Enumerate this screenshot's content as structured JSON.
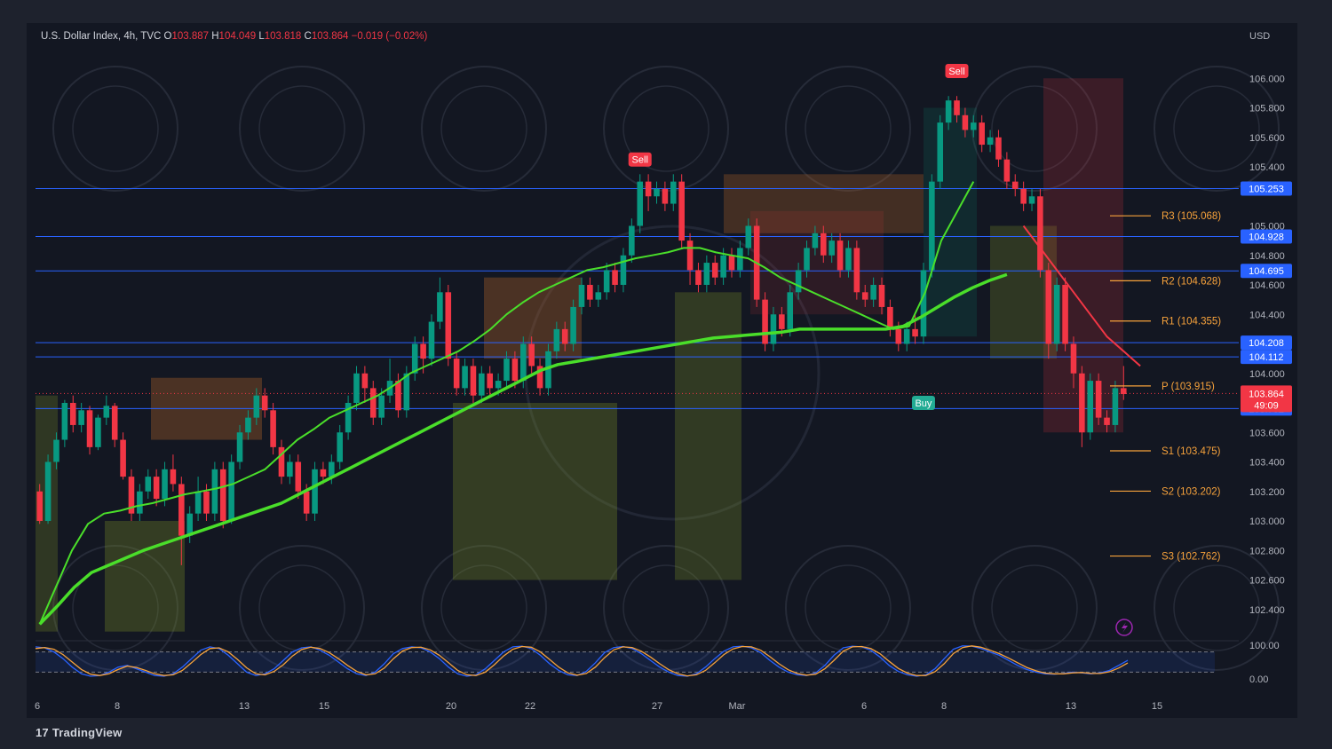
{
  "header": {
    "symbol": "U.S. Dollar Index, 4h, TVC",
    "o_label": "O",
    "o_value": "103.887",
    "h_label": "H",
    "h_value": "104.049",
    "l_label": "L",
    "l_value": "103.818",
    "c_label": "C",
    "c_value": "103.864",
    "change": "−0.019 (−0.02%)"
  },
  "brand": {
    "logo": "17",
    "name": "TradingView"
  },
  "colors": {
    "background": "#131722",
    "up": "#089981",
    "down": "#f23645",
    "ema": "#4ade2a",
    "level": "#2962ff",
    "pivot": "#f7a23b",
    "stoch_k": "#2962ff",
    "stoch_d": "#f7a23b"
  },
  "chart_data": {
    "type": "candlestick",
    "title": "U.S. Dollar Index, 4h, TVC",
    "currency_label": "USD",
    "ylim": [
      102.2,
      106.2
    ],
    "y_ticks": [
      "106.000",
      "105.800",
      "105.600",
      "105.400",
      "105.200",
      "105.000",
      "104.800",
      "104.600",
      "104.400",
      "104.200",
      "104.000",
      "103.800",
      "103.600",
      "103.400",
      "103.200",
      "103.000",
      "102.800",
      "102.600",
      "102.400"
    ],
    "x_ticks": [
      "6",
      "8",
      "13",
      "15",
      "20",
      "22",
      "27",
      "Mar",
      "6",
      "8",
      "13",
      "15"
    ],
    "candles": [
      [
        103.2,
        103.0,
        103.25,
        102.98
      ],
      [
        103.0,
        103.4,
        103.45,
        102.98
      ],
      [
        103.4,
        103.55,
        103.6,
        103.35
      ],
      [
        103.55,
        103.8,
        103.82,
        103.5
      ],
      [
        103.8,
        103.65,
        103.85,
        103.6
      ],
      [
        103.65,
        103.75,
        103.8,
        103.6
      ],
      [
        103.75,
        103.5,
        103.78,
        103.45
      ],
      [
        103.5,
        103.7,
        103.72,
        103.48
      ],
      [
        103.7,
        103.78,
        103.85,
        103.65
      ],
      [
        103.78,
        103.55,
        103.8,
        103.5
      ],
      [
        103.55,
        103.3,
        103.6,
        103.28
      ],
      [
        103.3,
        103.05,
        103.35,
        103.0
      ],
      [
        103.05,
        103.2,
        103.25,
        103.0
      ],
      [
        103.2,
        103.3,
        103.35,
        103.15
      ],
      [
        103.3,
        103.15,
        103.35,
        103.1
      ],
      [
        103.15,
        103.35,
        103.4,
        103.1
      ],
      [
        103.35,
        103.25,
        103.45,
        103.2
      ],
      [
        103.25,
        102.9,
        103.3,
        102.7
      ],
      [
        102.9,
        103.05,
        103.1,
        102.85
      ],
      [
        103.05,
        103.2,
        103.3,
        103.0
      ],
      [
        103.2,
        103.05,
        103.25,
        103.0
      ],
      [
        103.05,
        103.35,
        103.4,
        103.0
      ],
      [
        103.35,
        103.0,
        103.4,
        102.95
      ],
      [
        103.0,
        103.4,
        103.45,
        102.98
      ],
      [
        103.4,
        103.6,
        103.65,
        103.35
      ],
      [
        103.6,
        103.7,
        103.75,
        103.55
      ],
      [
        103.7,
        103.85,
        103.9,
        103.65
      ],
      [
        103.85,
        103.75,
        103.9,
        103.7
      ],
      [
        103.75,
        103.5,
        103.8,
        103.45
      ],
      [
        103.5,
        103.3,
        103.55,
        103.25
      ],
      [
        103.3,
        103.4,
        103.45,
        103.25
      ],
      [
        103.4,
        103.2,
        103.45,
        103.15
      ],
      [
        103.2,
        103.05,
        103.25,
        103.0
      ],
      [
        103.05,
        103.35,
        103.4,
        103.0
      ],
      [
        103.35,
        103.3,
        103.4,
        103.25
      ],
      [
        103.3,
        103.4,
        103.45,
        103.25
      ],
      [
        103.4,
        103.6,
        103.65,
        103.35
      ],
      [
        103.6,
        103.8,
        103.85,
        103.55
      ],
      [
        103.8,
        104.0,
        104.05,
        103.75
      ],
      [
        104.0,
        103.9,
        104.05,
        103.8
      ],
      [
        103.9,
        103.7,
        103.95,
        103.65
      ],
      [
        103.7,
        103.85,
        103.9,
        103.65
      ],
      [
        103.85,
        103.95,
        104.1,
        103.8
      ],
      [
        103.95,
        103.75,
        104.0,
        103.7
      ],
      [
        103.75,
        104.0,
        104.05,
        103.7
      ],
      [
        104.0,
        104.2,
        104.25,
        103.95
      ],
      [
        104.2,
        104.1,
        104.25,
        104.0
      ],
      [
        104.1,
        104.35,
        104.4,
        104.05
      ],
      [
        104.35,
        104.55,
        104.65,
        104.3
      ],
      [
        104.55,
        104.1,
        104.6,
        104.05
      ],
      [
        104.1,
        103.9,
        104.15,
        103.85
      ],
      [
        103.9,
        104.05,
        104.1,
        103.85
      ],
      [
        104.05,
        103.85,
        104.1,
        103.8
      ],
      [
        103.85,
        104.0,
        104.05,
        103.8
      ],
      [
        104.0,
        103.9,
        104.05,
        103.85
      ],
      [
        103.9,
        103.95,
        104.0,
        103.85
      ],
      [
        103.95,
        104.1,
        104.15,
        103.9
      ],
      [
        104.1,
        103.95,
        104.15,
        103.9
      ],
      [
        103.95,
        104.2,
        104.25,
        103.9
      ],
      [
        104.2,
        104.05,
        104.25,
        104.0
      ],
      [
        104.05,
        103.9,
        104.1,
        103.85
      ],
      [
        103.9,
        104.15,
        104.2,
        103.85
      ],
      [
        104.15,
        104.3,
        104.35,
        104.1
      ],
      [
        104.3,
        104.2,
        104.35,
        104.15
      ],
      [
        104.2,
        104.45,
        104.5,
        104.15
      ],
      [
        104.45,
        104.6,
        104.65,
        104.4
      ],
      [
        104.6,
        104.5,
        104.65,
        104.45
      ],
      [
        104.5,
        104.55,
        104.6,
        104.45
      ],
      [
        104.55,
        104.7,
        104.75,
        104.5
      ],
      [
        104.7,
        104.6,
        104.75,
        104.55
      ],
      [
        104.6,
        104.8,
        104.85,
        104.55
      ],
      [
        104.8,
        105.0,
        105.05,
        104.75
      ],
      [
        105.0,
        105.3,
        105.35,
        104.95
      ],
      [
        105.3,
        105.2,
        105.35,
        105.1
      ],
      [
        105.2,
        105.25,
        105.3,
        105.15
      ],
      [
        105.25,
        105.15,
        105.3,
        105.1
      ],
      [
        105.15,
        105.3,
        105.35,
        105.1
      ],
      [
        105.3,
        104.9,
        105.35,
        104.85
      ],
      [
        104.9,
        104.7,
        104.95,
        104.6
      ],
      [
        104.7,
        104.6,
        104.75,
        104.55
      ],
      [
        104.6,
        104.75,
        104.8,
        104.55
      ],
      [
        104.75,
        104.65,
        104.8,
        104.6
      ],
      [
        104.65,
        104.8,
        104.85,
        104.6
      ],
      [
        104.8,
        104.7,
        104.85,
        104.65
      ],
      [
        104.7,
        104.85,
        104.9,
        104.65
      ],
      [
        104.85,
        105.0,
        105.05,
        104.8
      ],
      [
        105.0,
        104.5,
        105.05,
        104.45
      ],
      [
        104.5,
        104.2,
        104.55,
        104.15
      ],
      [
        104.2,
        104.4,
        104.45,
        104.15
      ],
      [
        104.4,
        104.3,
        104.45,
        104.25
      ],
      [
        104.3,
        104.55,
        104.6,
        104.25
      ],
      [
        104.55,
        104.7,
        104.75,
        104.5
      ],
      [
        104.7,
        104.85,
        104.9,
        104.65
      ],
      [
        104.85,
        104.95,
        105.0,
        104.8
      ],
      [
        104.95,
        104.8,
        105.0,
        104.75
      ],
      [
        104.8,
        104.9,
        104.95,
        104.75
      ],
      [
        104.9,
        104.7,
        104.95,
        104.65
      ],
      [
        104.7,
        104.85,
        104.9,
        104.65
      ],
      [
        104.85,
        104.55,
        104.9,
        104.5
      ],
      [
        104.55,
        104.5,
        104.6,
        104.45
      ],
      [
        104.5,
        104.6,
        104.65,
        104.45
      ],
      [
        104.6,
        104.45,
        104.65,
        104.4
      ],
      [
        104.45,
        104.3,
        104.5,
        104.25
      ],
      [
        104.3,
        104.2,
        104.35,
        104.15
      ],
      [
        104.2,
        104.3,
        104.35,
        104.15
      ],
      [
        104.3,
        104.25,
        104.4,
        104.2
      ],
      [
        104.25,
        104.7,
        104.75,
        104.2
      ],
      [
        104.7,
        105.3,
        105.35,
        104.65
      ],
      [
        105.3,
        105.7,
        105.75,
        105.25
      ],
      [
        105.7,
        105.85,
        105.88,
        105.65
      ],
      [
        105.85,
        105.75,
        105.88,
        105.7
      ],
      [
        105.75,
        105.65,
        105.8,
        105.6
      ],
      [
        105.65,
        105.7,
        105.75,
        105.6
      ],
      [
        105.7,
        105.55,
        105.75,
        105.5
      ],
      [
        105.55,
        105.6,
        105.65,
        105.5
      ],
      [
        105.6,
        105.45,
        105.65,
        105.4
      ],
      [
        105.45,
        105.3,
        105.5,
        105.25
      ],
      [
        105.3,
        105.25,
        105.35,
        105.2
      ],
      [
        105.25,
        105.15,
        105.3,
        105.1
      ],
      [
        105.15,
        105.2,
        105.25,
        105.1
      ],
      [
        105.2,
        104.7,
        105.25,
        104.65
      ],
      [
        104.7,
        104.2,
        104.75,
        104.1
      ],
      [
        104.2,
        104.6,
        104.65,
        104.15
      ],
      [
        104.6,
        104.2,
        104.65,
        104.15
      ],
      [
        104.2,
        104.0,
        104.25,
        103.9
      ],
      [
        104.0,
        103.6,
        104.05,
        103.5
      ],
      [
        103.6,
        103.95,
        104.0,
        103.55
      ],
      [
        103.95,
        103.7,
        104.0,
        103.65
      ],
      [
        103.7,
        103.65,
        103.75,
        103.6
      ],
      [
        103.65,
        103.9,
        103.95,
        103.6
      ],
      [
        103.9,
        103.86,
        104.05,
        103.82
      ]
    ],
    "ema_fast": [
      102.3,
      102.55,
      102.8,
      102.98,
      103.05,
      103.07,
      103.1,
      103.12,
      103.15,
      103.18,
      103.2,
      103.22,
      103.25,
      103.3,
      103.35,
      103.45,
      103.55,
      103.62,
      103.7,
      103.75,
      103.8,
      103.85,
      103.92,
      104.0,
      104.05,
      104.1,
      104.15,
      104.22,
      104.3,
      104.4,
      104.48,
      104.55,
      104.6,
      104.65,
      104.7,
      104.72,
      104.75,
      104.78,
      104.8,
      104.82,
      104.85,
      104.85,
      104.82,
      104.8,
      104.78,
      104.72,
      104.65,
      104.6,
      104.55,
      104.5,
      104.45,
      104.4,
      104.35,
      104.3,
      104.32,
      104.55,
      104.9,
      105.1,
      105.3
    ],
    "ema_slow": [
      102.3,
      102.42,
      102.55,
      102.65,
      102.7,
      102.75,
      102.8,
      102.84,
      102.88,
      102.92,
      102.96,
      103.0,
      103.04,
      103.08,
      103.12,
      103.18,
      103.24,
      103.3,
      103.36,
      103.42,
      103.48,
      103.54,
      103.6,
      103.66,
      103.72,
      103.78,
      103.84,
      103.9,
      103.96,
      104.02,
      104.06,
      104.08,
      104.1,
      104.12,
      104.14,
      104.16,
      104.18,
      104.2,
      104.22,
      104.24,
      104.25,
      104.26,
      104.27,
      104.28,
      104.3,
      104.3,
      104.3,
      104.3,
      104.3,
      104.3,
      104.32,
      104.38,
      104.45,
      104.52,
      104.58,
      104.63,
      104.67
    ],
    "ema_red": [
      105.0,
      104.85,
      104.7,
      104.55,
      104.4,
      104.25,
      104.15,
      104.05
    ],
    "horizontal_levels": [
      {
        "label": "105.253",
        "value": 105.253
      },
      {
        "label": "104.928",
        "value": 104.928
      },
      {
        "label": "104.695",
        "value": 104.695
      },
      {
        "label": "104.208",
        "value": 104.208
      },
      {
        "label": "104.112",
        "value": 104.112
      },
      {
        "label": "103.762",
        "value": 103.762
      }
    ],
    "price_tag": {
      "label": "103.864",
      "countdown": "49:09",
      "value": 103.864
    },
    "pivots": [
      {
        "label": "R3 (105.068)",
        "value": 105.068
      },
      {
        "label": "R2 (104.628)",
        "value": 104.628
      },
      {
        "label": "R1 (104.355)",
        "value": 104.355
      },
      {
        "label": "P (103.915)",
        "value": 103.915
      },
      {
        "label": "S1 (103.475)",
        "value": 103.475
      },
      {
        "label": "S2 (103.202)",
        "value": 103.202
      },
      {
        "label": "S3 (102.762)",
        "value": 102.762
      }
    ],
    "signals": [
      {
        "label": "Sell",
        "type": "sell",
        "bar": 72,
        "value": 105.45
      },
      {
        "label": "Sell",
        "type": "sell",
        "bar": 110,
        "value": 106.05
      },
      {
        "label": "Buy",
        "type": "buy",
        "bar": 106,
        "value": 103.8
      }
    ],
    "stoch": {
      "ylim": [
        0,
        100
      ],
      "y_ticks": [
        "100.00",
        "0.00"
      ],
      "upper": 80,
      "lower": 20,
      "k": [
        95,
        92,
        80,
        60,
        35,
        15,
        8,
        10,
        20,
        35,
        40,
        30,
        20,
        10,
        8,
        15,
        35,
        60,
        85,
        95,
        90,
        70,
        45,
        20,
        10,
        15,
        30,
        55,
        80,
        92,
        95,
        85,
        70,
        50,
        30,
        15,
        10,
        20,
        45,
        75,
        90,
        95,
        92,
        80,
        60,
        35,
        15,
        8,
        12,
        30,
        55,
        80,
        95,
        97,
        90,
        70,
        45,
        25,
        12,
        10,
        22,
        48,
        78,
        93,
        96,
        90,
        75,
        55,
        35,
        20,
        10,
        8,
        15,
        35,
        60,
        82,
        95,
        97,
        92,
        78,
        55,
        35,
        20,
        12,
        10,
        18,
        40,
        70,
        92,
        97,
        95,
        85,
        65,
        40,
        22,
        12,
        8,
        12,
        30,
        60,
        88,
        98,
        97,
        90,
        80,
        70,
        55,
        40,
        28,
        20,
        15,
        14,
        16,
        20,
        18,
        15,
        18,
        25,
        40,
        55
      ],
      "d": [
        90,
        93,
        88,
        72,
        50,
        28,
        14,
        10,
        15,
        28,
        38,
        34,
        25,
        15,
        10,
        12,
        25,
        48,
        72,
        90,
        92,
        80,
        58,
        33,
        15,
        12,
        22,
        42,
        68,
        87,
        94,
        90,
        78,
        60,
        40,
        22,
        12,
        15,
        32,
        60,
        83,
        93,
        94,
        86,
        70,
        48,
        25,
        12,
        10,
        20,
        42,
        68,
        88,
        96,
        94,
        80,
        58,
        35,
        18,
        11,
        16,
        35,
        63,
        86,
        95,
        93,
        82,
        65,
        45,
        27,
        15,
        9,
        12,
        25,
        48,
        72,
        89,
        96,
        95,
        85,
        66,
        45,
        27,
        16,
        11,
        14,
        30,
        55,
        82,
        95,
        96,
        90,
        75,
        52,
        31,
        17,
        10,
        10,
        21,
        45,
        75,
        93,
        98,
        94,
        85,
        75,
        62,
        48,
        34,
        24,
        17,
        15,
        15,
        18,
        19,
        16,
        16,
        21,
        32,
        47
      ]
    }
  }
}
